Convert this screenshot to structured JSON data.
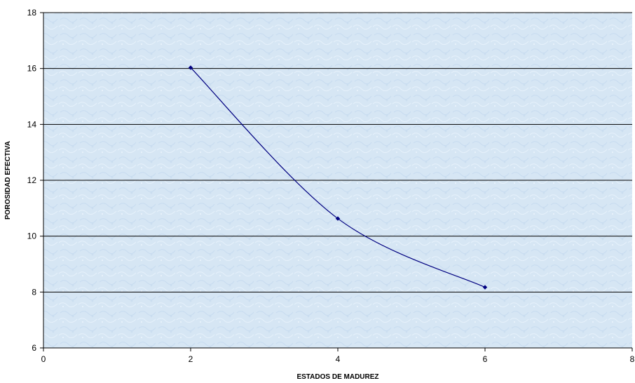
{
  "chart_data": {
    "type": "scatter",
    "title": "",
    "xlabel": "ESTADOS DE MADUREZ",
    "ylabel": "POROSIDAD EFECTIVA",
    "xlim": [
      0,
      8
    ],
    "ylim": [
      6,
      18
    ],
    "x_ticks": [
      0,
      2,
      4,
      6,
      8
    ],
    "y_ticks": [
      6,
      8,
      10,
      12,
      14,
      16,
      18
    ],
    "grid": {
      "horizontal": true,
      "vertical": false
    },
    "smoothed": true,
    "series": [
      {
        "values": [
          {
            "x": 2,
            "y": 16.03
          },
          {
            "x": 4,
            "y": 10.63
          },
          {
            "x": 6,
            "y": 8.17
          }
        ],
        "color": "#000080"
      }
    ],
    "colors": {
      "plot_background": "#d6e6f4",
      "gridline": "#000000",
      "axis": "#000000",
      "line": "#000080",
      "marker": "#000080"
    }
  }
}
